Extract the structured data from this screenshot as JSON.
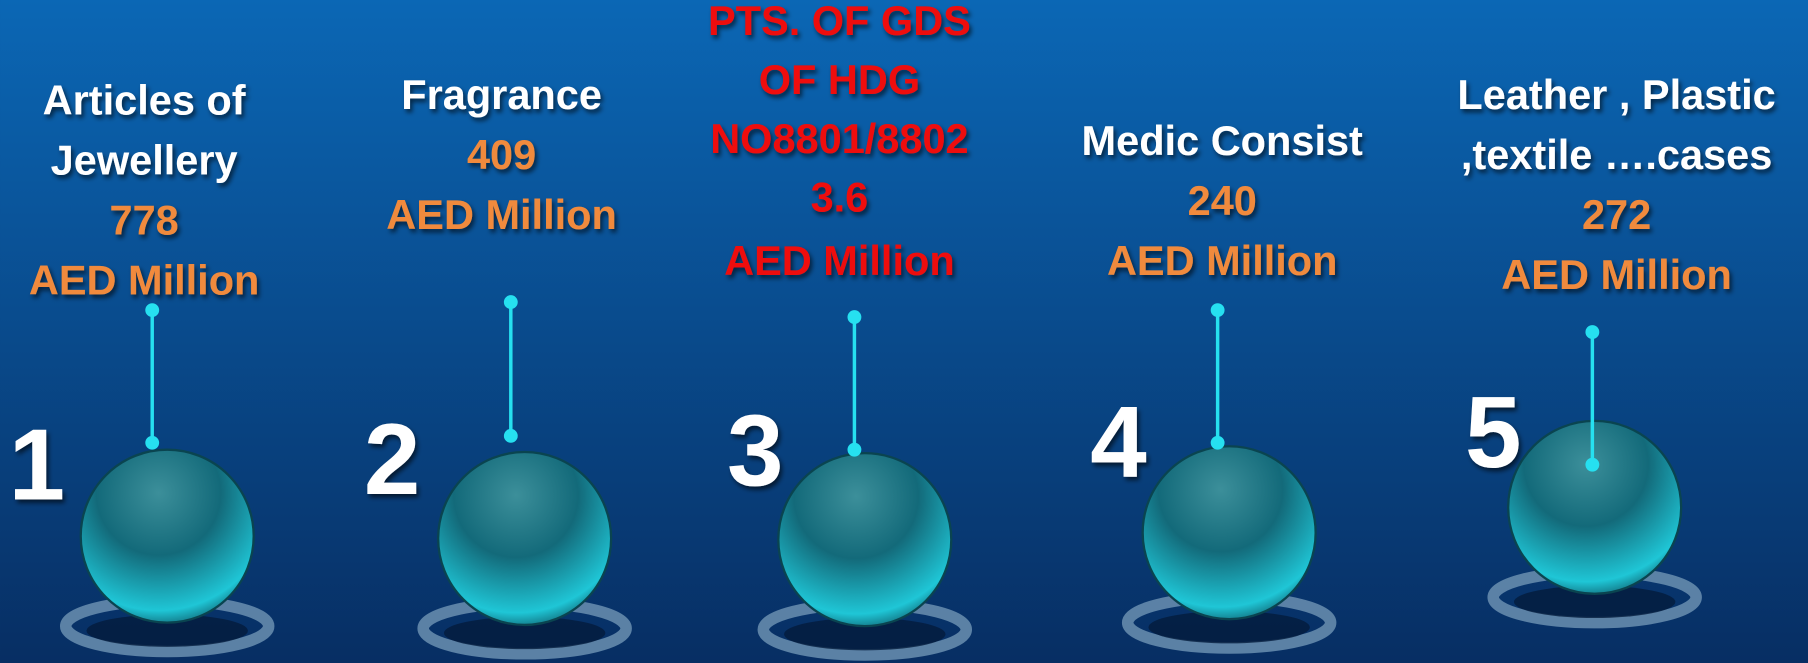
{
  "items": [
    {
      "number": "1",
      "name": [
        "Articles of",
        "Jewellery"
      ],
      "value": 778,
      "unit": "AED Million"
    },
    {
      "number": "2",
      "name": [
        "Fragrance"
      ],
      "value": 409,
      "unit": "AED Million"
    },
    {
      "number": "3",
      "name": [
        "PTS. OF GDS",
        "OF HDG",
        "NO8801/8802"
      ],
      "value": 3.6,
      "unit": "AED Million"
    },
    {
      "number": "4",
      "name": [
        "Medic Consist"
      ],
      "value": 240,
      "unit": "AED Million"
    },
    {
      "number": "5",
      "name": [
        "Leather , Plastic",
        ",textile  ….cases"
      ],
      "value": 272,
      "unit": "AED Million"
    }
  ]
}
